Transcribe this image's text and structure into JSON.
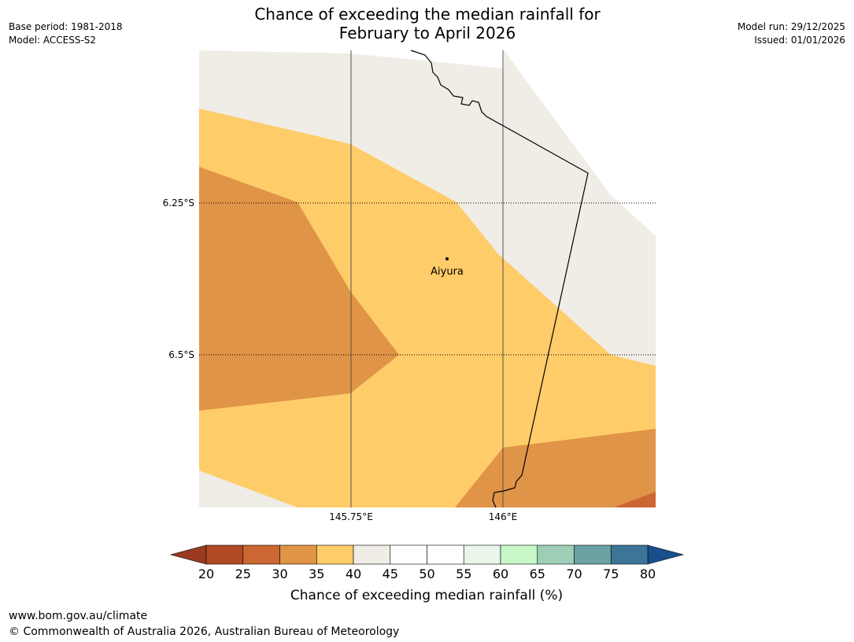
{
  "title": {
    "line1": "Chance of exceeding the median rainfall for",
    "line2": "February to April 2026"
  },
  "meta_left": {
    "base_period": "Base period: 1981-2018",
    "model": "Model: ACCESS-S2"
  },
  "meta_right": {
    "model_run": "Model run: 29/12/2025",
    "issued": "Issued: 01/01/2026"
  },
  "map": {
    "lat_labels": [
      "6.25°S",
      "6.5°S"
    ],
    "lon_labels": [
      "145.75°E",
      "146°E"
    ],
    "place": {
      "name": "Aiyura"
    }
  },
  "legend": {
    "title": "Chance of exceeding median rainfall (%)",
    "ticks": [
      "20",
      "25",
      "30",
      "35",
      "40",
      "45",
      "50",
      "55",
      "60",
      "65",
      "70",
      "75",
      "80"
    ],
    "colors": [
      "#b04a26",
      "#cc6633",
      "#e09448",
      "#fecc68",
      "#f0ece6",
      "#ffffff",
      "#ffffff",
      "#eaf6ea",
      "#c8f8c8",
      "#9ccfb6",
      "#6ba3a5",
      "#3d7599"
    ],
    "under_color": "#9a3a20",
    "over_color": "#174f8c"
  },
  "category_colors": {
    "c25_30": "#cc6633",
    "c30_35": "#e09448",
    "c35_40": "#fecc68",
    "c40_45": "#f0ece6"
  },
  "footer": {
    "url": "www.bom.gov.au/climate",
    "copyright": "© Commonwealth of Australia 2026, Australian Bureau of Meteorology"
  }
}
